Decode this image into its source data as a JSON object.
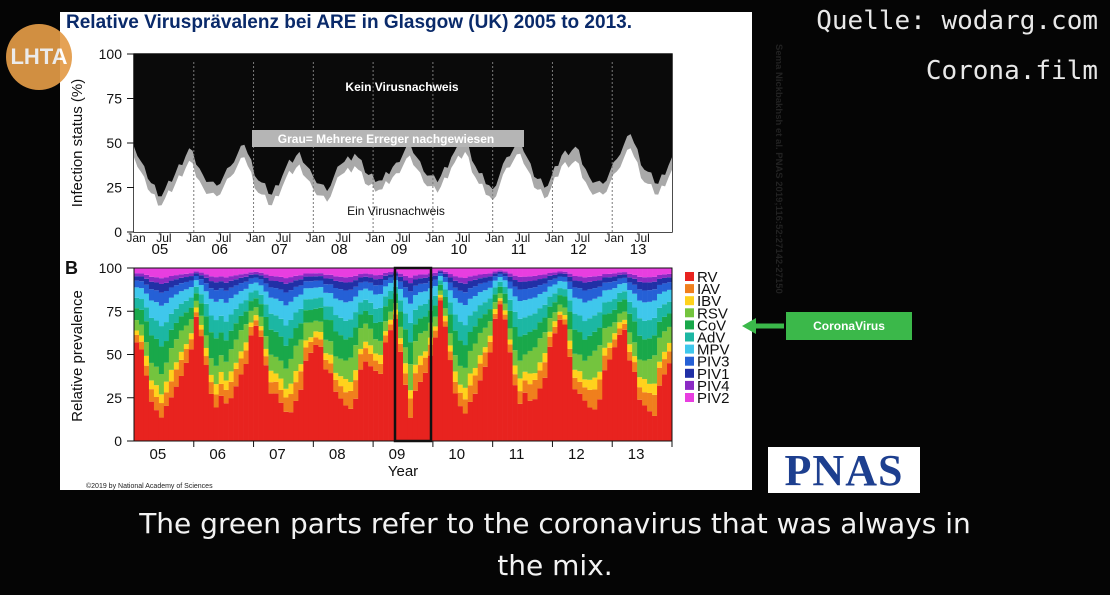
{
  "slide_title": "Relative Virusprävalenz bei ARE in Glasgow (UK) 2005 to 2013.",
  "source": {
    "line1": "Quelle: wodarg.com",
    "line2": "Corona.film"
  },
  "logo_text": "LHTA",
  "citation_vertical": "Sema Nickbakhsh et al. PNAS 2019;116:52:27142-27150",
  "copyright": "©2019 by National Academy of Sciences",
  "pnas_logo": "PNAS",
  "callout_label": "CoronaVirus",
  "subtitle": {
    "line1": "The green parts refer to the coronavirus that was always in",
    "line2": "the mix."
  },
  "colors": {
    "RV": "#e8231f",
    "IAV": "#f07f1d",
    "IBV": "#ffd21c",
    "RSV": "#74c43e",
    "CoV": "#19a84a",
    "AdV": "#1cb7a3",
    "MPV": "#3fc7ec",
    "PIV3": "#2560d6",
    "PIV1": "#2130a6",
    "PIV4": "#8b2ac4",
    "PIV2": "#e83ee0",
    "callout": "#3bb84a",
    "title": "#0a2a6a"
  },
  "chart_data": [
    {
      "type": "area",
      "panel": "A",
      "ylabel": "Infection status (%)",
      "ylim": [
        0,
        100
      ],
      "yticks": [
        "0",
        "25",
        "50",
        "75",
        "100"
      ],
      "xticks_minor": [
        "Jan",
        "Jul",
        "Jan",
        "Jul",
        "Jan",
        "Jul",
        "Jan",
        "Jul",
        "Jan",
        "Jul",
        "Jan",
        "Jul",
        "Jan",
        "Jul",
        "Jan",
        "Jul",
        "Jan",
        "Jul"
      ],
      "xticks_years": [
        "05",
        "06",
        "07",
        "08",
        "09",
        "10",
        "11",
        "12",
        "13"
      ],
      "annotations": [
        "Kein Virusnachweis",
        "Grau= Mehrere Erreger nachgewiesen",
        "Ein Virusnachweis"
      ],
      "single_virus_pct": [
        42,
        24,
        15,
        27,
        40,
        25,
        20,
        31,
        42,
        22,
        15,
        30,
        38,
        24,
        17,
        32,
        37,
        26,
        24,
        33,
        43,
        28,
        22,
        36,
        45,
        27,
        18,
        36,
        44,
        25,
        20,
        37,
        40,
        24,
        21,
        34,
        47,
        28,
        21,
        35
      ],
      "multiple_virus_pct": [
        48,
        30,
        20,
        33,
        47,
        32,
        26,
        37,
        49,
        29,
        21,
        36,
        45,
        31,
        23,
        38,
        44,
        32,
        29,
        39,
        50,
        34,
        28,
        42,
        52,
        33,
        24,
        42,
        51,
        31,
        26,
        43,
        48,
        31,
        27,
        41,
        55,
        35,
        27,
        42
      ]
    },
    {
      "type": "bar",
      "panel": "B",
      "stacked": true,
      "xlabel": "Year",
      "ylabel": "Relative prevalence",
      "ylim": [
        0,
        100
      ],
      "yticks": [
        "0",
        "25",
        "50",
        "75",
        "100"
      ],
      "categories": [
        "05",
        "06",
        "07",
        "08",
        "09",
        "10",
        "11",
        "12",
        "13"
      ],
      "legend": [
        "RV",
        "IAV",
        "IBV",
        "RSV",
        "CoV",
        "AdV",
        "MPV",
        "PIV3",
        "PIV1",
        "PIV4",
        "PIV2"
      ],
      "highlight_year": "09",
      "rv_pct_seasonal": [
        62,
        22,
        15,
        40,
        70,
        25,
        18,
        45,
        68,
        24,
        14,
        40,
        60,
        26,
        20,
        44,
        42,
        70,
        18,
        40,
        78,
        25,
        18,
        48,
        80,
        28,
        20,
        45,
        75,
        24,
        18,
        42,
        70,
        22,
        18,
        44
      ]
    }
  ]
}
